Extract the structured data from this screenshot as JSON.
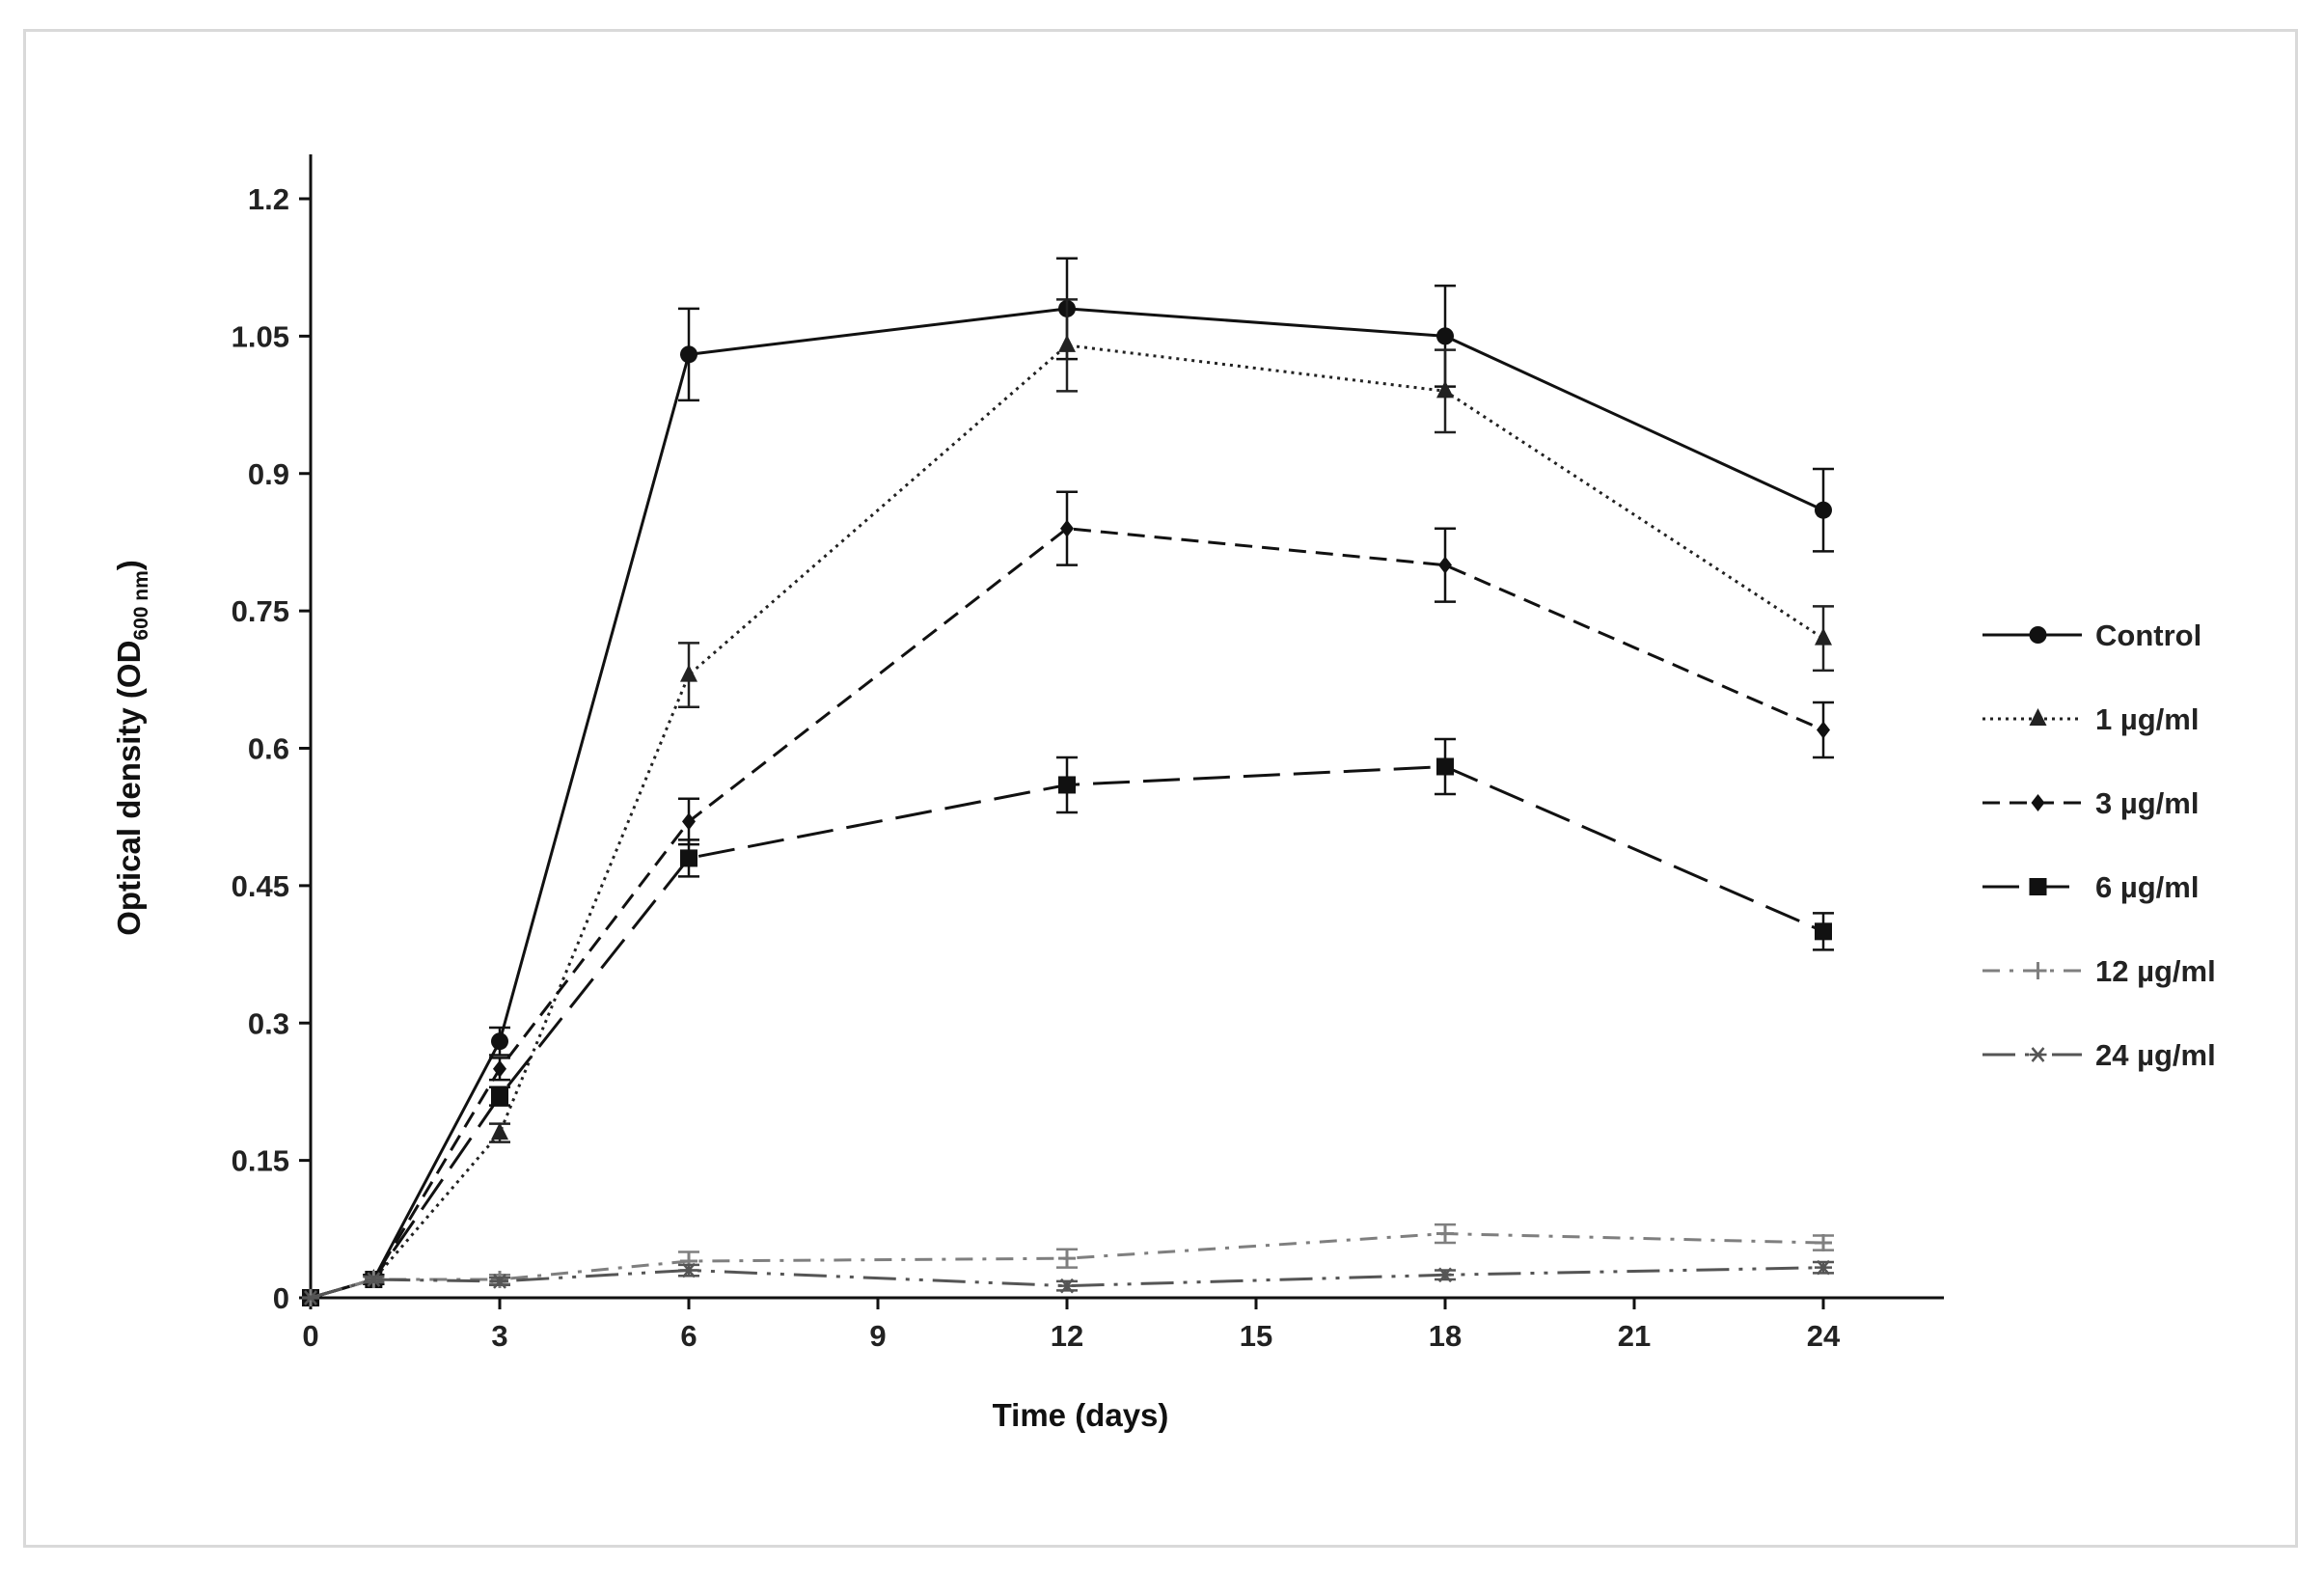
{
  "chart_data": {
    "type": "line",
    "title": "",
    "xlabel": "Time (days)",
    "ylabel": {
      "main": "Optical density (OD",
      "subscript": "600 nm",
      "close": ")"
    },
    "xlim": [
      0,
      24
    ],
    "ylim": [
      0,
      1.2
    ],
    "xticks": [
      "0",
      "3",
      "6",
      "9",
      "12",
      "15",
      "18",
      "21",
      "24"
    ],
    "xtick_values": [
      0,
      3,
      6,
      9,
      12,
      15,
      18,
      21,
      24
    ],
    "yticks": [
      "0",
      "0.15",
      "0.3",
      "0.45",
      "0.6",
      "0.75",
      "0.9",
      "1.05",
      "1.2"
    ],
    "ytick_values": [
      0,
      0.15,
      0.3,
      0.45,
      0.6,
      0.75,
      0.9,
      1.05,
      1.2
    ],
    "grid": false,
    "legend_position": "right",
    "x": [
      0,
      1,
      3,
      6,
      12,
      18,
      24
    ],
    "series": [
      {
        "name": "Control",
        "marker": "circle",
        "dash": "solid",
        "color": "#111111",
        "values": [
          0,
          0.02,
          0.28,
          1.03,
          1.08,
          1.05,
          0.86
        ],
        "errors": [
          0,
          0.005,
          0.015,
          0.05,
          0.055,
          0.055,
          0.045
        ]
      },
      {
        "name": "1 µg/ml",
        "marker": "triangle",
        "dash": "dotted",
        "color": "#222222",
        "values": [
          0,
          0.02,
          0.18,
          0.68,
          1.04,
          0.99,
          0.72
        ],
        "errors": [
          0,
          0.005,
          0.01,
          0.035,
          0.05,
          0.045,
          0.035
        ]
      },
      {
        "name": "3 µg/ml",
        "marker": "diamond",
        "dash": "dashed",
        "color": "#111111",
        "values": [
          0,
          0.02,
          0.25,
          0.52,
          0.84,
          0.8,
          0.62
        ],
        "errors": [
          0,
          0.005,
          0.012,
          0.025,
          0.04,
          0.04,
          0.03
        ]
      },
      {
        "name": "6 µg/ml",
        "marker": "square",
        "dash": "longdash",
        "color": "#111111",
        "values": [
          0,
          0.02,
          0.22,
          0.48,
          0.56,
          0.58,
          0.4
        ],
        "errors": [
          0,
          0.005,
          0.01,
          0.02,
          0.03,
          0.03,
          0.02
        ]
      },
      {
        "name": "12 µg/ml",
        "marker": "plus",
        "dash": "dashdot",
        "color": "#7f7f7f",
        "values": [
          0,
          0.02,
          0.02,
          0.04,
          0.043,
          0.07,
          0.06
        ],
        "errors": [
          0,
          0.003,
          0.005,
          0.01,
          0.01,
          0.01,
          0.008
        ]
      },
      {
        "name": "24 µg/ml",
        "marker": "asterisk",
        "dash": "longdashdot",
        "color": "#555555",
        "values": [
          0,
          0.02,
          0.018,
          0.03,
          0.013,
          0.025,
          0.033
        ],
        "errors": [
          0,
          0.003,
          0.004,
          0.006,
          0.005,
          0.005,
          0.006
        ]
      }
    ]
  }
}
